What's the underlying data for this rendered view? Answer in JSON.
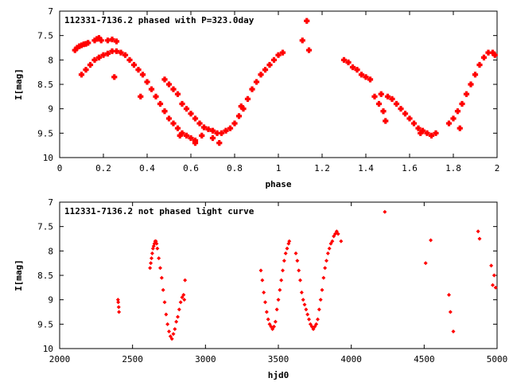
{
  "chart_data": [
    {
      "type": "scatter",
      "title": "112331-7136.2 phased with P=323.0day",
      "xlabel": "phase",
      "ylabel": "I[mag]",
      "xlim": [
        0,
        2
      ],
      "ylim": [
        10,
        7
      ],
      "y_inverted": true,
      "xticks": [
        "0",
        "0.2",
        "0.4",
        "0.6",
        "0.8",
        "1",
        "1.2",
        "1.4",
        "1.6",
        "1.8",
        "2"
      ],
      "yticks": [
        "7",
        "7.5",
        "8",
        "8.5",
        "9",
        "9.5",
        "10"
      ],
      "marker_color": "#ff0000",
      "series": [
        {
          "points": [
            [
              0.07,
              7.8
            ],
            [
              0.08,
              7.75
            ],
            [
              0.09,
              7.72
            ],
            [
              0.1,
              7.7
            ],
            [
              0.11,
              7.68
            ],
            [
              0.12,
              7.67
            ],
            [
              0.13,
              7.65
            ],
            [
              0.16,
              7.6
            ],
            [
              0.17,
              7.57
            ],
            [
              0.18,
              7.55
            ],
            [
              0.19,
              7.6
            ],
            [
              0.22,
              7.6
            ],
            [
              0.24,
              7.58
            ],
            [
              0.26,
              7.62
            ],
            [
              0.1,
              8.3
            ],
            [
              0.12,
              8.2
            ],
            [
              0.14,
              8.1
            ],
            [
              0.16,
              8.0
            ],
            [
              0.18,
              7.95
            ],
            [
              0.2,
              7.9
            ],
            [
              0.22,
              7.87
            ],
            [
              0.24,
              7.82
            ],
            [
              0.26,
              7.82
            ],
            [
              0.28,
              7.85
            ],
            [
              0.3,
              7.9
            ],
            [
              0.32,
              8.0
            ],
            [
              0.34,
              8.1
            ],
            [
              0.36,
              8.2
            ],
            [
              0.38,
              8.3
            ],
            [
              0.4,
              8.45
            ],
            [
              0.42,
              8.6
            ],
            [
              0.44,
              8.75
            ],
            [
              0.46,
              8.9
            ],
            [
              0.48,
              9.05
            ],
            [
              0.5,
              9.2
            ],
            [
              0.52,
              9.3
            ],
            [
              0.54,
              9.4
            ],
            [
              0.56,
              9.5
            ],
            [
              0.58,
              9.55
            ],
            [
              0.6,
              9.6
            ],
            [
              0.62,
              9.7
            ],
            [
              0.48,
              8.4
            ],
            [
              0.5,
              8.5
            ],
            [
              0.52,
              8.6
            ],
            [
              0.54,
              8.7
            ],
            [
              0.56,
              8.9
            ],
            [
              0.58,
              9.0
            ],
            [
              0.6,
              9.1
            ],
            [
              0.62,
              9.2
            ],
            [
              0.64,
              9.3
            ],
            [
              0.66,
              9.38
            ],
            [
              0.68,
              9.42
            ],
            [
              0.7,
              9.45
            ],
            [
              0.72,
              9.5
            ],
            [
              0.74,
              9.5
            ],
            [
              0.76,
              9.45
            ],
            [
              0.78,
              9.4
            ],
            [
              0.8,
              9.3
            ],
            [
              0.82,
              9.15
            ],
            [
              0.84,
              9.0
            ],
            [
              0.86,
              8.8
            ],
            [
              0.88,
              8.6
            ],
            [
              0.9,
              8.45
            ],
            [
              0.92,
              8.3
            ],
            [
              0.94,
              8.2
            ],
            [
              0.96,
              8.1
            ],
            [
              0.98,
              8.0
            ],
            [
              1.0,
              7.9
            ],
            [
              1.02,
              7.85
            ],
            [
              0.25,
              8.35
            ],
            [
              0.37,
              8.75
            ],
            [
              0.55,
              9.55
            ],
            [
              0.62,
              9.65
            ],
            [
              0.65,
              9.55
            ],
            [
              0.7,
              9.6
            ],
            [
              0.73,
              9.7
            ],
            [
              0.83,
              8.95
            ],
            [
              1.11,
              7.6
            ],
            [
              1.13,
              7.2
            ],
            [
              1.14,
              7.8
            ],
            [
              1.3,
              8.0
            ],
            [
              1.32,
              8.05
            ],
            [
              1.34,
              8.15
            ],
            [
              1.36,
              8.2
            ],
            [
              1.38,
              8.3
            ],
            [
              1.4,
              8.35
            ],
            [
              1.42,
              8.4
            ],
            [
              1.44,
              8.75
            ],
            [
              1.46,
              8.9
            ],
            [
              1.48,
              9.05
            ],
            [
              1.49,
              9.25
            ],
            [
              1.47,
              8.7
            ],
            [
              1.5,
              8.75
            ],
            [
              1.52,
              8.8
            ],
            [
              1.54,
              8.9
            ],
            [
              1.56,
              9.0
            ],
            [
              1.58,
              9.1
            ],
            [
              1.6,
              9.2
            ],
            [
              1.62,
              9.3
            ],
            [
              1.64,
              9.4
            ],
            [
              1.66,
              9.45
            ],
            [
              1.68,
              9.5
            ],
            [
              1.7,
              9.55
            ],
            [
              1.72,
              9.5
            ],
            [
              1.65,
              9.5
            ],
            [
              1.78,
              9.3
            ],
            [
              1.8,
              9.2
            ],
            [
              1.82,
              9.05
            ],
            [
              1.84,
              8.9
            ],
            [
              1.86,
              8.7
            ],
            [
              1.88,
              8.5
            ],
            [
              1.9,
              8.3
            ],
            [
              1.92,
              8.1
            ],
            [
              1.94,
              7.95
            ],
            [
              1.96,
              7.85
            ],
            [
              1.98,
              7.85
            ],
            [
              1.99,
              7.9
            ],
            [
              1.83,
              9.4
            ]
          ]
        }
      ]
    },
    {
      "type": "scatter",
      "title": "112331-7136.2 not phased light curve",
      "xlabel": "hjd0",
      "ylabel": "I[mag]",
      "xlim": [
        2000,
        5000
      ],
      "ylim": [
        10,
        7
      ],
      "y_inverted": true,
      "xticks": [
        "2000",
        "2500",
        "3000",
        "3500",
        "4000",
        "4500",
        "5000"
      ],
      "yticks": [
        "7",
        "7.5",
        "8",
        "8.5",
        "9",
        "9.5",
        "10"
      ],
      "marker_color": "#ff0000",
      "series": [
        {
          "points": [
            [
              2400,
              9.0
            ],
            [
              2402,
              9.05
            ],
            [
              2405,
              9.15
            ],
            [
              2407,
              9.25
            ],
            [
              2620,
              8.35
            ],
            [
              2625,
              8.25
            ],
            [
              2630,
              8.15
            ],
            [
              2635,
              8.05
            ],
            [
              2640,
              7.95
            ],
            [
              2645,
              7.9
            ],
            [
              2650,
              7.85
            ],
            [
              2655,
              7.8
            ],
            [
              2660,
              7.8
            ],
            [
              2665,
              7.85
            ],
            [
              2670,
              7.95
            ],
            [
              2680,
              8.15
            ],
            [
              2690,
              8.35
            ],
            [
              2700,
              8.55
            ],
            [
              2710,
              8.8
            ],
            [
              2720,
              9.05
            ],
            [
              2730,
              9.3
            ],
            [
              2740,
              9.5
            ],
            [
              2750,
              9.65
            ],
            [
              2760,
              9.75
            ],
            [
              2770,
              9.8
            ],
            [
              2780,
              9.7
            ],
            [
              2790,
              9.6
            ],
            [
              2800,
              9.45
            ],
            [
              2810,
              9.35
            ],
            [
              2820,
              9.2
            ],
            [
              2830,
              9.05
            ],
            [
              2840,
              8.95
            ],
            [
              2850,
              8.9
            ],
            [
              2855,
              9.0
            ],
            [
              2860,
              8.6
            ],
            [
              3380,
              8.4
            ],
            [
              3390,
              8.6
            ],
            [
              3400,
              8.85
            ],
            [
              3410,
              9.05
            ],
            [
              3420,
              9.25
            ],
            [
              3430,
              9.4
            ],
            [
              3440,
              9.5
            ],
            [
              3450,
              9.55
            ],
            [
              3460,
              9.6
            ],
            [
              3470,
              9.55
            ],
            [
              3480,
              9.45
            ],
            [
              3490,
              9.2
            ],
            [
              3500,
              9.0
            ],
            [
              3510,
              8.8
            ],
            [
              3520,
              8.6
            ],
            [
              3530,
              8.4
            ],
            [
              3540,
              8.2
            ],
            [
              3550,
              8.05
            ],
            [
              3560,
              7.95
            ],
            [
              3570,
              7.85
            ],
            [
              3575,
              7.8
            ],
            [
              3620,
              8.05
            ],
            [
              3630,
              8.2
            ],
            [
              3640,
              8.4
            ],
            [
              3650,
              8.6
            ],
            [
              3660,
              8.85
            ],
            [
              3670,
              9.0
            ],
            [
              3680,
              9.1
            ],
            [
              3690,
              9.2
            ],
            [
              3700,
              9.3
            ],
            [
              3710,
              9.4
            ],
            [
              3720,
              9.5
            ],
            [
              3730,
              9.55
            ],
            [
              3740,
              9.6
            ],
            [
              3750,
              9.55
            ],
            [
              3760,
              9.5
            ],
            [
              3770,
              9.4
            ],
            [
              3780,
              9.2
            ],
            [
              3790,
              9.0
            ],
            [
              3800,
              8.8
            ],
            [
              3810,
              8.55
            ],
            [
              3820,
              8.35
            ],
            [
              3830,
              8.2
            ],
            [
              3840,
              8.05
            ],
            [
              3850,
              7.95
            ],
            [
              3860,
              7.85
            ],
            [
              3870,
              7.8
            ],
            [
              3880,
              7.7
            ],
            [
              3890,
              7.65
            ],
            [
              3900,
              7.6
            ],
            [
              3910,
              7.65
            ],
            [
              3930,
              7.8
            ],
            [
              4230,
              7.2
            ],
            [
              4510,
              8.25
            ],
            [
              4545,
              7.78
            ],
            [
              4670,
              8.9
            ],
            [
              4680,
              9.25
            ],
            [
              4700,
              9.65
            ],
            [
              4870,
              7.6
            ],
            [
              4880,
              7.75
            ],
            [
              4960,
              8.3
            ],
            [
              4970,
              8.7
            ],
            [
              4980,
              8.5
            ],
            [
              4990,
              8.75
            ]
          ]
        }
      ]
    }
  ]
}
